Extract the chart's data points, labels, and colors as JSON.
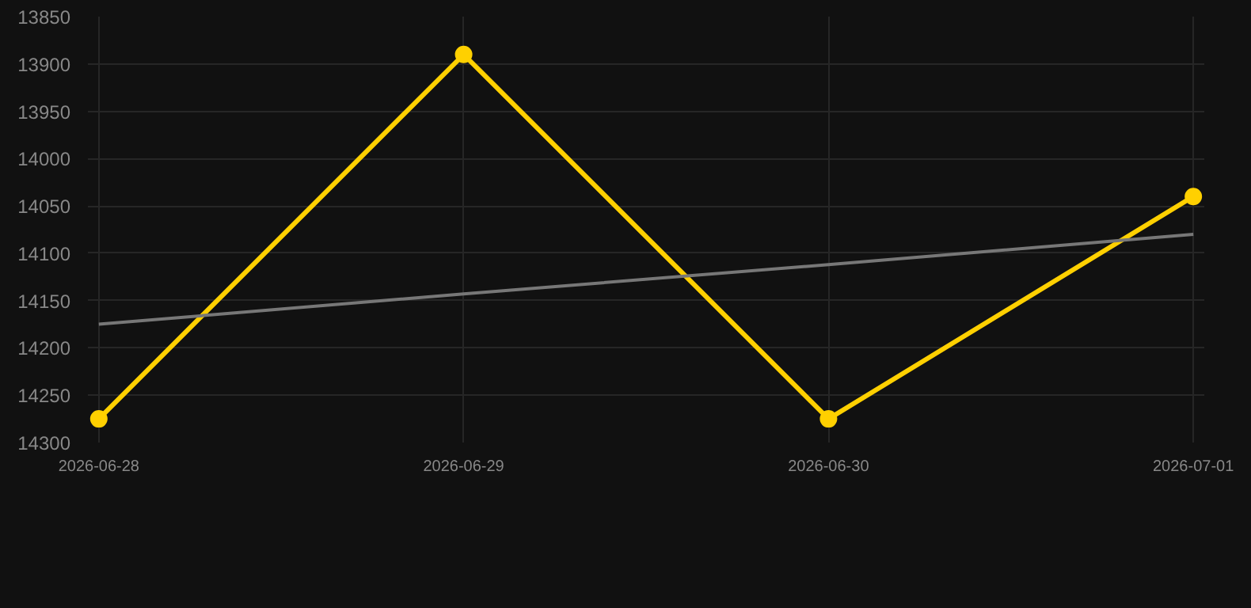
{
  "chart_data": {
    "type": "line",
    "categories": [
      "2026-06-28",
      "2026-06-29",
      "2026-06-30",
      "2026-07-01"
    ],
    "series": [
      {
        "color": "#ffd000",
        "values": [
          14275,
          13890,
          14275,
          14040
        ],
        "marker": "circle"
      },
      {
        "type": "line",
        "color": "#777777",
        "values": [
          14175,
          14143,
          14112,
          14080
        ],
        "marker": "none"
      }
    ],
    "ylim": [
      14300,
      13850
    ],
    "yticks": [
      13850,
      13900,
      13950,
      14000,
      14050,
      14100,
      14150,
      14200,
      14250,
      14300
    ],
    "grid": true
  }
}
